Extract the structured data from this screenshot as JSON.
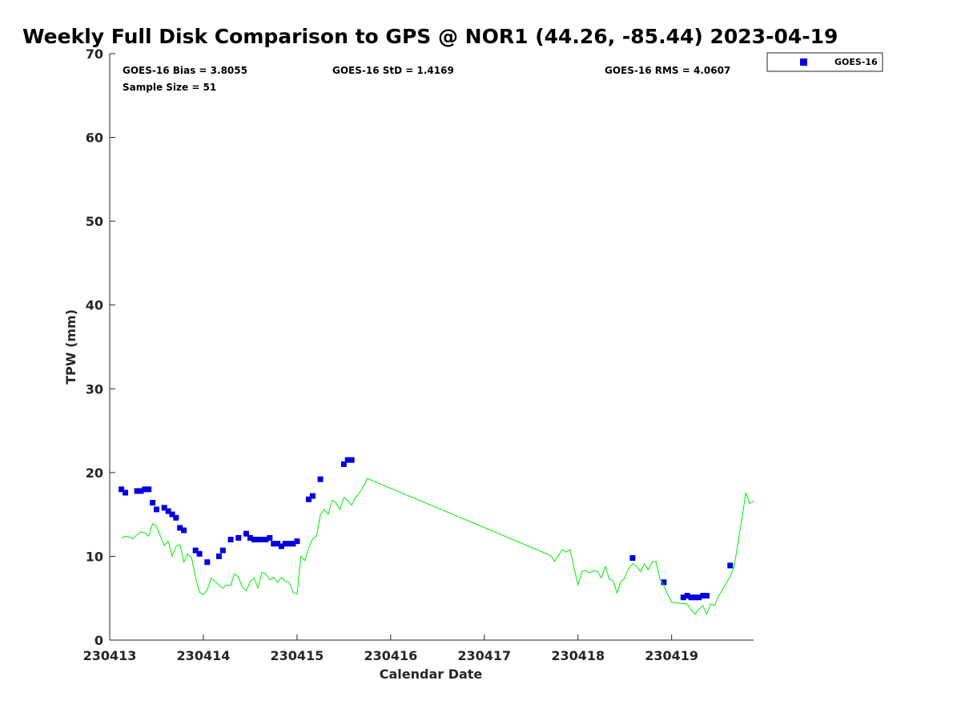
{
  "chart_data": {
    "type": "scatter",
    "title": "Weekly Full Disk Comparison to GPS @ NOR1 (44.26, -85.44) 2023-04-19",
    "xlabel": "Calendar Date",
    "ylabel": "TPW (mm)",
    "x_ticks": [
      "230413",
      "230414",
      "230415",
      "230416",
      "230417",
      "230418",
      "230419"
    ],
    "y_ticks": [
      "0",
      "10",
      "20",
      "30",
      "40",
      "50",
      "60",
      "70"
    ],
    "xlim": [
      "2023-04-13T00:00",
      "2023-04-19T21:00"
    ],
    "ylim": [
      0,
      70
    ],
    "grid": false,
    "legend_position": "top-right, outside plot",
    "stats": {
      "bias": "GOES-16 Bias = 3.8055",
      "std": "GOES-16 StD = 1.4169",
      "rms": "GOES-16 RMS = 4.0607",
      "sample": "Sample Size = 51"
    },
    "series": [
      {
        "name": "GOES-16",
        "style": "square-markers",
        "color": "#0000dd",
        "points": [
          [
            "2023-04-13T03:00",
            18.0
          ],
          [
            "2023-04-13T04:00",
            17.6
          ],
          [
            "2023-04-13T07:00",
            17.8
          ],
          [
            "2023-04-13T08:00",
            17.8
          ],
          [
            "2023-04-13T09:00",
            18.0
          ],
          [
            "2023-04-13T10:00",
            18.0
          ],
          [
            "2023-04-13T11:00",
            16.4
          ],
          [
            "2023-04-13T12:00",
            15.6
          ],
          [
            "2023-04-13T14:00",
            15.8
          ],
          [
            "2023-04-13T15:00",
            15.4
          ],
          [
            "2023-04-13T16:00",
            15.0
          ],
          [
            "2023-04-13T17:00",
            14.6
          ],
          [
            "2023-04-13T18:00",
            13.4
          ],
          [
            "2023-04-13T19:00",
            13.1
          ],
          [
            "2023-04-13T22:00",
            10.7
          ],
          [
            "2023-04-13T23:00",
            10.3
          ],
          [
            "2023-04-14T01:00",
            9.3
          ],
          [
            "2023-04-14T04:00",
            10.0
          ],
          [
            "2023-04-14T05:00",
            10.7
          ],
          [
            "2023-04-14T07:00",
            12.0
          ],
          [
            "2023-04-14T09:00",
            12.2
          ],
          [
            "2023-04-14T11:00",
            12.7
          ],
          [
            "2023-04-14T12:00",
            12.2
          ],
          [
            "2023-04-14T13:00",
            12.0
          ],
          [
            "2023-04-14T14:00",
            12.0
          ],
          [
            "2023-04-14T15:00",
            12.0
          ],
          [
            "2023-04-14T16:00",
            12.0
          ],
          [
            "2023-04-14T17:00",
            12.2
          ],
          [
            "2023-04-14T18:00",
            11.5
          ],
          [
            "2023-04-14T19:00",
            11.5
          ],
          [
            "2023-04-14T20:00",
            11.2
          ],
          [
            "2023-04-14T21:00",
            11.5
          ],
          [
            "2023-04-14T22:00",
            11.5
          ],
          [
            "2023-04-14T23:00",
            11.5
          ],
          [
            "2023-04-15T00:00",
            11.8
          ],
          [
            "2023-04-15T03:00",
            16.8
          ],
          [
            "2023-04-15T04:00",
            17.2
          ],
          [
            "2023-04-15T06:00",
            19.2
          ],
          [
            "2023-04-15T12:00",
            21.0
          ],
          [
            "2023-04-15T13:00",
            21.5
          ],
          [
            "2023-04-15T14:00",
            21.5
          ],
          [
            "2023-04-18T14:00",
            9.8
          ],
          [
            "2023-04-18T22:00",
            6.9
          ],
          [
            "2023-04-19T03:00",
            5.1
          ],
          [
            "2023-04-19T04:00",
            5.3
          ],
          [
            "2023-04-19T05:00",
            5.1
          ],
          [
            "2023-04-19T06:00",
            5.1
          ],
          [
            "2023-04-19T07:00",
            5.1
          ],
          [
            "2023-04-19T08:00",
            5.3
          ],
          [
            "2023-04-19T09:00",
            5.3
          ],
          [
            "2023-04-19T15:00",
            8.9
          ]
        ]
      },
      {
        "style": "line",
        "color": "#00ee00",
        "points": [
          [
            "2023-04-13T03:00",
            12.2
          ],
          [
            "2023-04-13T04:00",
            12.4
          ],
          [
            "2023-04-13T05:00",
            12.3
          ],
          [
            "2023-04-13T06:00",
            12.1
          ],
          [
            "2023-04-13T07:00",
            12.6
          ],
          [
            "2023-04-13T08:00",
            12.9
          ],
          [
            "2023-04-13T09:00",
            12.8
          ],
          [
            "2023-04-13T10:00",
            12.4
          ],
          [
            "2023-04-13T11:00",
            13.9
          ],
          [
            "2023-04-13T12:00",
            13.6
          ],
          [
            "2023-04-13T13:00",
            12.4
          ],
          [
            "2023-04-13T14:00",
            11.3
          ],
          [
            "2023-04-13T15:00",
            11.8
          ],
          [
            "2023-04-13T16:00",
            10.0
          ],
          [
            "2023-04-13T17:00",
            11.2
          ],
          [
            "2023-04-13T18:00",
            11.4
          ],
          [
            "2023-04-13T19:00",
            9.3
          ],
          [
            "2023-04-13T20:00",
            10.3
          ],
          [
            "2023-04-13T21:00",
            9.8
          ],
          [
            "2023-04-13T22:00",
            7.5
          ],
          [
            "2023-04-13T23:00",
            5.7
          ],
          [
            "2023-04-14T00:00",
            5.4
          ],
          [
            "2023-04-14T01:00",
            6.0
          ],
          [
            "2023-04-14T02:00",
            7.4
          ],
          [
            "2023-04-14T03:00",
            7.0
          ],
          [
            "2023-04-14T04:00",
            6.6
          ],
          [
            "2023-04-14T05:00",
            6.2
          ],
          [
            "2023-04-14T06:00",
            6.6
          ],
          [
            "2023-04-14T07:00",
            6.5
          ],
          [
            "2023-04-14T08:00",
            7.9
          ],
          [
            "2023-04-14T09:00",
            7.5
          ],
          [
            "2023-04-14T10:00",
            6.3
          ],
          [
            "2023-04-14T11:00",
            5.9
          ],
          [
            "2023-04-14T12:00",
            7.0
          ],
          [
            "2023-04-14T13:00",
            7.4
          ],
          [
            "2023-04-14T14:00",
            6.2
          ],
          [
            "2023-04-14T15:00",
            8.1
          ],
          [
            "2023-04-14T16:00",
            7.9
          ],
          [
            "2023-04-14T17:00",
            7.2
          ],
          [
            "2023-04-14T18:00",
            7.5
          ],
          [
            "2023-04-14T19:00",
            6.9
          ],
          [
            "2023-04-14T20:00",
            7.5
          ],
          [
            "2023-04-14T21:00",
            7.0
          ],
          [
            "2023-04-14T22:00",
            6.9
          ],
          [
            "2023-04-14T23:00",
            5.7
          ],
          [
            "2023-04-15T00:00",
            5.5
          ],
          [
            "2023-04-15T01:00",
            10.0
          ],
          [
            "2023-04-15T02:00",
            9.5
          ],
          [
            "2023-04-15T03:00",
            11.0
          ],
          [
            "2023-04-15T04:00",
            12.1
          ],
          [
            "2023-04-15T05:00",
            12.4
          ],
          [
            "2023-04-15T06:00",
            15.0
          ],
          [
            "2023-04-15T07:00",
            15.6
          ],
          [
            "2023-04-15T08:00",
            15.0
          ],
          [
            "2023-04-15T09:00",
            16.7
          ],
          [
            "2023-04-15T10:00",
            16.4
          ],
          [
            "2023-04-15T11:00",
            15.6
          ],
          [
            "2023-04-15T12:00",
            17.0
          ],
          [
            "2023-04-15T13:00",
            16.7
          ],
          [
            "2023-04-15T14:00",
            16.1
          ],
          [
            "2023-04-15T15:00",
            17.0
          ],
          [
            "2023-04-15T16:00",
            17.6
          ],
          [
            "2023-04-15T17:00",
            18.3
          ],
          [
            "2023-04-15T18:00",
            19.3
          ],
          [
            "2023-04-17T17:00",
            10.1
          ],
          [
            "2023-04-17T18:00",
            9.4
          ],
          [
            "2023-04-17T19:00",
            10.1
          ],
          [
            "2023-04-17T20:00",
            10.8
          ],
          [
            "2023-04-17T21:00",
            10.5
          ],
          [
            "2023-04-17T22:00",
            10.8
          ],
          [
            "2023-04-17T23:00",
            8.6
          ],
          [
            "2023-04-18T00:00",
            6.6
          ],
          [
            "2023-04-18T01:00",
            8.2
          ],
          [
            "2023-04-18T02:00",
            8.3
          ],
          [
            "2023-04-18T03:00",
            8.0
          ],
          [
            "2023-04-18T04:00",
            8.3
          ],
          [
            "2023-04-18T05:00",
            8.2
          ],
          [
            "2023-04-18T06:00",
            7.4
          ],
          [
            "2023-04-18T07:00",
            8.8
          ],
          [
            "2023-04-18T08:00",
            7.3
          ],
          [
            "2023-04-18T09:00",
            7.1
          ],
          [
            "2023-04-18T10:00",
            5.6
          ],
          [
            "2023-04-18T11:00",
            7.0
          ],
          [
            "2023-04-18T12:00",
            7.4
          ],
          [
            "2023-04-18T13:00",
            8.6
          ],
          [
            "2023-04-18T14:00",
            9.1
          ],
          [
            "2023-04-18T15:00",
            8.8
          ],
          [
            "2023-04-18T16:00",
            8.2
          ],
          [
            "2023-04-18T17:00",
            9.1
          ],
          [
            "2023-04-18T18:00",
            8.4
          ],
          [
            "2023-04-18T19:00",
            9.3
          ],
          [
            "2023-04-18T20:00",
            9.4
          ],
          [
            "2023-04-18T21:00",
            7.3
          ],
          [
            "2023-04-18T22:00",
            6.5
          ],
          [
            "2023-04-18T23:00",
            5.4
          ],
          [
            "2023-04-19T00:00",
            4.5
          ],
          [
            "2023-04-19T04:00",
            4.3
          ],
          [
            "2023-04-19T05:00",
            3.6
          ],
          [
            "2023-04-19T06:00",
            3.1
          ],
          [
            "2023-04-19T07:00",
            3.7
          ],
          [
            "2023-04-19T08:00",
            4.1
          ],
          [
            "2023-04-19T09:00",
            3.1
          ],
          [
            "2023-04-19T10:00",
            4.3
          ],
          [
            "2023-04-19T11:00",
            4.1
          ],
          [
            "2023-04-19T12:00",
            5.2
          ],
          [
            "2023-04-19T13:00",
            6.0
          ],
          [
            "2023-04-19T14:00",
            6.8
          ],
          [
            "2023-04-19T15:00",
            7.6
          ],
          [
            "2023-04-19T16:00",
            8.7
          ],
          [
            "2023-04-19T17:00",
            11.6
          ],
          [
            "2023-04-19T18:00",
            14.5
          ],
          [
            "2023-04-19T19:00",
            17.6
          ],
          [
            "2023-04-19T20:00",
            16.3
          ],
          [
            "2023-04-19T21:00",
            16.6
          ]
        ]
      }
    ]
  }
}
